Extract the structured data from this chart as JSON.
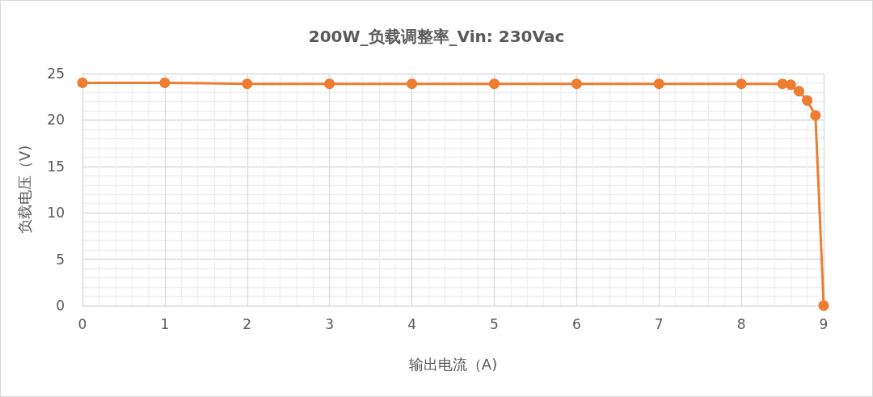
{
  "chart_data": {
    "type": "line",
    "title": "200W_负载调整率_Vin: 230Vac",
    "xlabel": "输出电流（A)",
    "ylabel": "负载电压（V)",
    "x": [
      0,
      1,
      2,
      3,
      4,
      5,
      6,
      7,
      8,
      8.5,
      8.6,
      8.7,
      8.8,
      8.9,
      9
    ],
    "series": [
      {
        "color": "#ed7d31",
        "values": [
          24.0,
          24.0,
          23.9,
          23.9,
          23.9,
          23.9,
          23.9,
          23.9,
          23.9,
          23.9,
          23.8,
          23.1,
          22.1,
          20.5,
          0
        ]
      }
    ],
    "xlim": [
      0,
      9
    ],
    "xticks": [
      0,
      1,
      2,
      3,
      4,
      5,
      6,
      7,
      8,
      9
    ],
    "ylim": [
      0,
      25
    ],
    "yticks": [
      0,
      5,
      10,
      15,
      20,
      25
    ],
    "grid": true,
    "marker": "circle",
    "line_style": "solid"
  }
}
